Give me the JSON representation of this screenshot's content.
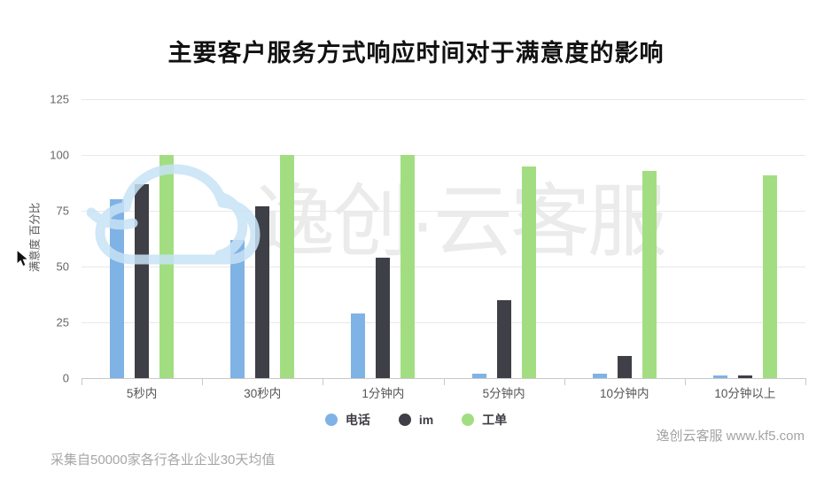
{
  "title": "主要客户服务方式响应时间对于满意度的影响",
  "chart_data": {
    "type": "bar",
    "categories": [
      "5秒内",
      "30秒内",
      "1分钟内",
      "5分钟内",
      "10分钟内",
      "10分钟以上"
    ],
    "series": [
      {
        "name": "电话",
        "color": "#7fb2e5",
        "values": [
          80,
          62,
          29,
          2,
          2,
          1
        ]
      },
      {
        "name": "im",
        "color": "#3f3f47",
        "values": [
          87,
          77,
          54,
          35,
          10,
          1
        ]
      },
      {
        "name": "工单",
        "color": "#a2de81",
        "values": [
          100,
          100,
          100,
          95,
          93,
          91
        ]
      }
    ],
    "xlabel": "",
    "ylabel": "满意度 百分比",
    "yticks": [
      0,
      25,
      50,
      75,
      100,
      125
    ],
    "ylim": [
      0,
      125
    ],
    "grid": true,
    "legend_position": "bottom"
  },
  "watermark": {
    "text": "逸创·云客服",
    "icon": "cloud-logo"
  },
  "footer": {
    "source_note": "采集自50000家各行各业企业30天均值",
    "brand": "逸创云客服 www.kf5.com"
  },
  "colors": {
    "bar_phone": "#7fb2e5",
    "bar_im": "#3f3f47",
    "bar_ticket": "#a2de81",
    "grid": "#e8e8e8",
    "axis": "#c9c9c9",
    "tick_text": "#666666",
    "category_text": "#555555",
    "legend_text": "#3d3d46",
    "footer_text": "#a6a6a6",
    "watermark_text": "#ebebeb",
    "watermark_cloud": "#c7e3f6",
    "title_text": "#111111"
  }
}
